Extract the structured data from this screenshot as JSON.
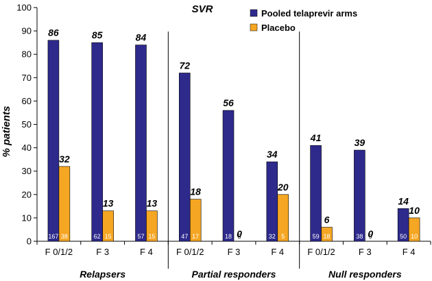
{
  "chart_data": {
    "type": "bar",
    "title": "SVR",
    "ylabel": "% patients",
    "xlabel": "",
    "ylim": [
      0,
      100
    ],
    "yticks": [
      0,
      10,
      20,
      30,
      40,
      50,
      60,
      70,
      80,
      90,
      100
    ],
    "grid": false,
    "legend_position": "top-right",
    "groups": [
      "Relapsers",
      "Partial responders",
      "Null responders"
    ],
    "categories": [
      "F 0/1/2",
      "F 3",
      "F 4",
      "F 0/1/2",
      "F 3",
      "F 4",
      "F 0/1/2",
      "F 3",
      "F 4"
    ],
    "series": [
      {
        "name": "Pooled telaprevir arms",
        "color": "#2e2a8c",
        "values": [
          86,
          85,
          84,
          72,
          56,
          34,
          41,
          39,
          14
        ],
        "value_labels": [
          "86",
          "85",
          "84",
          "72",
          "56",
          "34",
          "41",
          "39",
          "14"
        ],
        "n_labels": [
          "167",
          "62",
          "57",
          "47",
          "18",
          "32",
          "59",
          "38",
          "50"
        ]
      },
      {
        "name": "Placebo",
        "color": "#f5a623",
        "values": [
          32,
          13,
          13,
          18,
          0,
          20,
          6,
          0,
          10
        ],
        "value_labels": [
          "32",
          "13",
          "13",
          "18",
          "0",
          "20",
          "6",
          "0",
          "10"
        ],
        "n_labels": [
          "38",
          "15",
          "15",
          "17",
          "5",
          "5",
          "18",
          "9",
          "10"
        ]
      }
    ]
  }
}
